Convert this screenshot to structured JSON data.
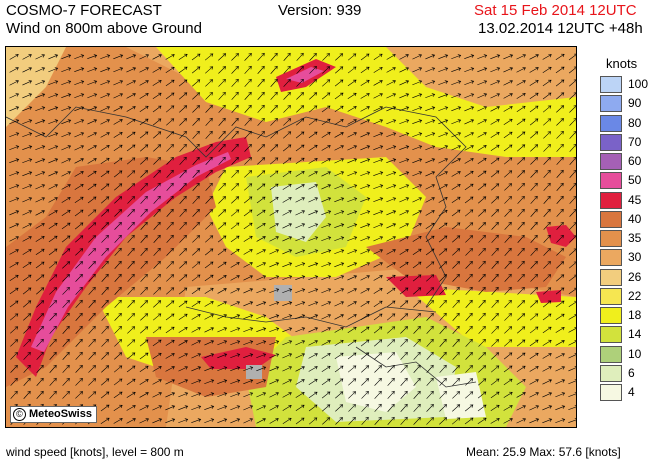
{
  "header": {
    "title_line1": "COSMO-7 FORECAST",
    "title_line2": "Wind on 800m above Ground",
    "version": "Version: 939",
    "valid_date": "Sat 15 Feb 2014 12UTC",
    "run_info": "13.02.2014 12UTC +48h"
  },
  "legend": {
    "unit": "knots",
    "levels": [
      {
        "label": "100",
        "color": "#bcd4f6"
      },
      {
        "label": "90",
        "color": "#8eaaf0"
      },
      {
        "label": "80",
        "color": "#6a88e6"
      },
      {
        "label": "70",
        "color": "#7a62c8"
      },
      {
        "label": "60",
        "color": "#a560b5"
      },
      {
        "label": "50",
        "color": "#e64d9b"
      },
      {
        "label": "45",
        "color": "#e01f3e"
      },
      {
        "label": "40",
        "color": "#d9763e"
      },
      {
        "label": "35",
        "color": "#e3914c"
      },
      {
        "label": "30",
        "color": "#eba860"
      },
      {
        "label": "26",
        "color": "#f2cd7e"
      },
      {
        "label": "22",
        "color": "#f6e651"
      },
      {
        "label": "18",
        "color": "#f0ef1c"
      },
      {
        "label": "14",
        "color": "#d2e23c"
      },
      {
        "label": "10",
        "color": "#aed07a"
      },
      {
        "label": "6",
        "color": "#dfeebc"
      },
      {
        "label": "4",
        "color": "#f6f8e2"
      }
    ]
  },
  "map": {
    "copyright": "MeteoSwiss",
    "copyright_symbol": "©"
  },
  "footer": {
    "left": "wind speed [knots], level = 800 m",
    "right": "Mean:   25.9 Max:   57.6 [knots]"
  }
}
